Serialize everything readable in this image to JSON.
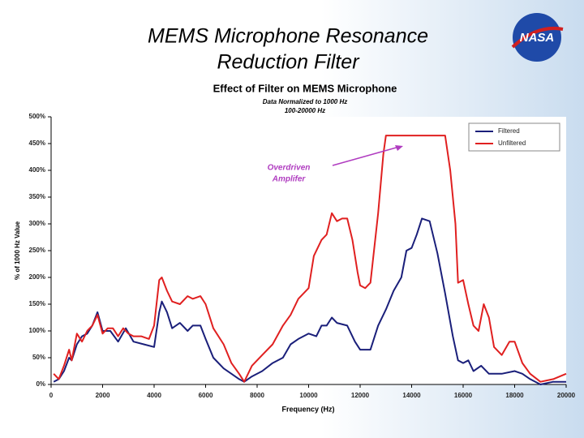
{
  "slide": {
    "title_lines": [
      "MEMS Microphone Resonance",
      "Reduction Filter"
    ],
    "logo": "NASA"
  },
  "chart_data": {
    "type": "line",
    "title": "Effect of Filter on MEMS Microphone",
    "subtitle": [
      "Data Normalized to 1000 Hz",
      "100-20000 Hz"
    ],
    "xlabel": "Frequency (Hz)",
    "ylabel": "% of 1000 Hz Value",
    "xlim": [
      0,
      20000
    ],
    "xticks": [
      0,
      2000,
      4000,
      6000,
      8000,
      10000,
      12000,
      14000,
      16000,
      18000,
      20000
    ],
    "ylim": [
      0,
      500
    ],
    "yticks": [
      {
        "value": 0,
        "label": "0%"
      },
      {
        "value": 50,
        "label": "50%"
      },
      {
        "value": 100,
        "label": "100%"
      },
      {
        "value": 150,
        "label": "150%"
      },
      {
        "value": 200,
        "label": "200%"
      },
      {
        "value": 250,
        "label": "250%"
      },
      {
        "value": 300,
        "label": "300%"
      },
      {
        "value": 350,
        "label": "350%"
      },
      {
        "value": 400,
        "label": "400%"
      },
      {
        "value": 450,
        "label": "450%"
      },
      {
        "value": 500,
        "label": "500%"
      }
    ],
    "grid": false,
    "legend": "upper right",
    "series": [
      {
        "name": "Filtered",
        "color": "#1a1f7a",
        "x": [
          100,
          300,
          500,
          700,
          800,
          1000,
          1200,
          1400,
          1600,
          1800,
          2000,
          2300,
          2600,
          2900,
          3200,
          3600,
          4000,
          4200,
          4300,
          4500,
          4700,
          5000,
          5300,
          5500,
          5800,
          6000,
          6300,
          6700,
          7000,
          7300,
          7500,
          7800,
          8200,
          8600,
          9000,
          9300,
          9600,
          10000,
          10300,
          10500,
          10700,
          10900,
          11100,
          11500,
          11800,
          12000,
          12400,
          12700,
          13000,
          13300,
          13600,
          13800,
          14000,
          14200,
          14400,
          14700,
          15000,
          15300,
          15600,
          15800,
          16000,
          16200,
          16400,
          16700,
          17000,
          17500,
          18000,
          18300,
          18600,
          19000,
          19500,
          20000
        ],
        "values": [
          5,
          10,
          25,
          50,
          45,
          75,
          90,
          95,
          110,
          135,
          100,
          100,
          80,
          105,
          80,
          75,
          70,
          135,
          155,
          135,
          105,
          115,
          100,
          110,
          110,
          85,
          50,
          30,
          20,
          10,
          5,
          15,
          25,
          40,
          50,
          75,
          85,
          95,
          90,
          110,
          110,
          125,
          115,
          110,
          80,
          65,
          65,
          110,
          140,
          175,
          200,
          250,
          255,
          280,
          310,
          305,
          245,
          170,
          90,
          45,
          40,
          45,
          25,
          35,
          20,
          20,
          25,
          20,
          10,
          0,
          5,
          5
        ]
      },
      {
        "name": "Unfiltered",
        "color": "#e02020",
        "x": [
          100,
          300,
          500,
          700,
          800,
          1000,
          1200,
          1400,
          1600,
          1800,
          2000,
          2200,
          2400,
          2600,
          2800,
          3000,
          3200,
          3500,
          3800,
          4000,
          4200,
          4300,
          4500,
          4700,
          5000,
          5300,
          5500,
          5800,
          6000,
          6300,
          6700,
          7000,
          7300,
          7500,
          7800,
          8200,
          8600,
          9000,
          9300,
          9600,
          10000,
          10200,
          10500,
          10700,
          10900,
          11100,
          11300,
          11500,
          11700,
          11900,
          12000,
          12200,
          12400,
          12700,
          12900,
          13000,
          13500,
          14000,
          14500,
          15000,
          15300,
          15500,
          15700,
          15800,
          16000,
          16200,
          16400,
          16600,
          16800,
          17000,
          17200,
          17500,
          17800,
          18000,
          18300,
          18600,
          19000,
          19500,
          20000
        ],
        "values": [
          20,
          10,
          35,
          65,
          45,
          95,
          80,
          100,
          110,
          130,
          95,
          105,
          105,
          90,
          105,
          95,
          90,
          90,
          85,
          110,
          195,
          200,
          175,
          155,
          150,
          165,
          160,
          165,
          150,
          105,
          75,
          40,
          20,
          5,
          35,
          55,
          75,
          110,
          130,
          160,
          180,
          240,
          270,
          280,
          320,
          305,
          310,
          310,
          270,
          210,
          185,
          180,
          190,
          320,
          430,
          465,
          465,
          465,
          465,
          465,
          465,
          400,
          300,
          190,
          195,
          150,
          110,
          100,
          150,
          125,
          70,
          55,
          80,
          80,
          40,
          20,
          5,
          10,
          20
        ]
      }
    ],
    "annotations": [
      {
        "lines": [
          "Overdriven",
          "Amplifer"
        ],
        "color": "#b03cc0"
      }
    ]
  }
}
